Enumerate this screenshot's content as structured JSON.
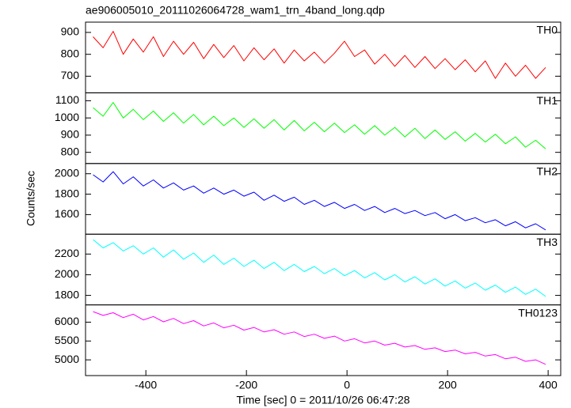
{
  "chart_data": [
    {
      "type": "line",
      "title": "ae906005010_20111026064728_wam1_trn_4band_long.qdp",
      "x": [
        -505,
        -485,
        -465,
        -445,
        -425,
        -405,
        -385,
        -365,
        -345,
        -325,
        -305,
        -285,
        -265,
        -245,
        -225,
        -205,
        -185,
        -165,
        -145,
        -125,
        -105,
        -85,
        -65,
        -45,
        -25,
        -5,
        15,
        35,
        55,
        75,
        95,
        115,
        135,
        155,
        175,
        195,
        215,
        235,
        255,
        275,
        295,
        315,
        335,
        355,
        375,
        395
      ],
      "series": [
        {
          "name": "TH0",
          "color": "#ff0000",
          "values": [
            880,
            830,
            905,
            800,
            870,
            810,
            880,
            790,
            860,
            800,
            855,
            780,
            845,
            785,
            840,
            770,
            830,
            775,
            825,
            760,
            820,
            770,
            810,
            760,
            805,
            860,
            790,
            820,
            755,
            800,
            745,
            795,
            740,
            790,
            735,
            780,
            730,
            775,
            720,
            770,
            690,
            760,
            700,
            750,
            690,
            740
          ]
        }
      ],
      "xlim": [
        -520,
        425
      ],
      "ylim": [
        624,
        947
      ],
      "yticks": [
        700,
        800,
        900
      ]
    },
    {
      "type": "line",
      "x": [
        -505,
        -485,
        -465,
        -445,
        -425,
        -405,
        -385,
        -365,
        -345,
        -325,
        -305,
        -285,
        -265,
        -245,
        -225,
        -205,
        -185,
        -165,
        -145,
        -125,
        -105,
        -85,
        -65,
        -45,
        -25,
        -5,
        15,
        35,
        55,
        75,
        95,
        115,
        135,
        155,
        175,
        195,
        215,
        235,
        255,
        275,
        295,
        315,
        335,
        355,
        375,
        395
      ],
      "series": [
        {
          "name": "TH1",
          "color": "#00ff00",
          "values": [
            1060,
            1010,
            1090,
            1000,
            1050,
            990,
            1040,
            980,
            1030,
            970,
            1020,
            960,
            1010,
            955,
            1000,
            945,
            995,
            940,
            990,
            930,
            985,
            925,
            975,
            920,
            970,
            915,
            960,
            905,
            955,
            900,
            945,
            890,
            940,
            880,
            930,
            875,
            920,
            865,
            910,
            860,
            905,
            850,
            890,
            830,
            870,
            820
          ]
        }
      ],
      "xlim": [
        -520,
        425
      ],
      "ylim": [
        735,
        1146
      ],
      "yticks": [
        800,
        900,
        1000,
        1100
      ]
    },
    {
      "type": "line",
      "ylabel": "Counts/sec",
      "x": [
        -505,
        -485,
        -465,
        -445,
        -425,
        -405,
        -385,
        -365,
        -345,
        -325,
        -305,
        -285,
        -265,
        -245,
        -225,
        -205,
        -185,
        -165,
        -145,
        -125,
        -105,
        -85,
        -65,
        -45,
        -25,
        -5,
        15,
        35,
        55,
        75,
        95,
        115,
        135,
        155,
        175,
        195,
        215,
        235,
        255,
        275,
        295,
        315,
        335,
        355,
        375,
        395
      ],
      "series": [
        {
          "name": "TH2",
          "color": "#0000ff",
          "values": [
            1990,
            1920,
            2020,
            1900,
            1970,
            1880,
            1940,
            1860,
            1910,
            1840,
            1880,
            1810,
            1860,
            1800,
            1840,
            1780,
            1820,
            1740,
            1790,
            1730,
            1770,
            1700,
            1740,
            1680,
            1720,
            1660,
            1700,
            1640,
            1680,
            1620,
            1660,
            1610,
            1640,
            1590,
            1620,
            1560,
            1600,
            1540,
            1570,
            1520,
            1550,
            1490,
            1530,
            1470,
            1510,
            1450
          ]
        }
      ],
      "xlim": [
        -520,
        425
      ],
      "ylim": [
        1408,
        2100
      ],
      "yticks": [
        1600,
        1800,
        2000
      ]
    },
    {
      "type": "line",
      "x": [
        -505,
        -485,
        -465,
        -445,
        -425,
        -405,
        -385,
        -365,
        -345,
        -325,
        -305,
        -285,
        -265,
        -245,
        -225,
        -205,
        -185,
        -165,
        -145,
        -125,
        -105,
        -85,
        -65,
        -45,
        -25,
        -5,
        15,
        35,
        55,
        75,
        95,
        115,
        135,
        155,
        175,
        195,
        215,
        235,
        255,
        275,
        295,
        315,
        335,
        355,
        375,
        395
      ],
      "series": [
        {
          "name": "TH3",
          "color": "#00ffff",
          "values": [
            2340,
            2260,
            2310,
            2230,
            2280,
            2200,
            2260,
            2170,
            2240,
            2150,
            2210,
            2120,
            2190,
            2100,
            2160,
            2080,
            2140,
            2060,
            2120,
            2040,
            2100,
            2030,
            2080,
            2010,
            2060,
            1990,
            2040,
            1970,
            2020,
            1950,
            2000,
            1930,
            1980,
            1910,
            1960,
            1890,
            1940,
            1870,
            1920,
            1850,
            1900,
            1830,
            1880,
            1810,
            1860,
            1790
          ]
        }
      ],
      "xlim": [
        -520,
        425
      ],
      "ylim": [
        1708,
        2392
      ],
      "yticks": [
        1800,
        2000,
        2200
      ]
    },
    {
      "type": "line",
      "xlabel": "Time [sec] 0 = 2011/10/26 06:47:28",
      "x": [
        -505,
        -485,
        -465,
        -445,
        -425,
        -405,
        -385,
        -365,
        -345,
        -325,
        -305,
        -285,
        -265,
        -245,
        -225,
        -205,
        -185,
        -165,
        -145,
        -125,
        -105,
        -85,
        -65,
        -45,
        -25,
        -5,
        15,
        35,
        55,
        75,
        95,
        115,
        135,
        155,
        175,
        195,
        215,
        235,
        255,
        275,
        295,
        315,
        335,
        355,
        375,
        395
      ],
      "series": [
        {
          "name": "TH0123",
          "color": "#ff00ff",
          "values": [
            6280,
            6180,
            6250,
            6120,
            6210,
            6060,
            6150,
            6010,
            6100,
            5960,
            6040,
            5900,
            5980,
            5850,
            5920,
            5790,
            5860,
            5740,
            5800,
            5680,
            5740,
            5620,
            5680,
            5570,
            5630,
            5500,
            5560,
            5450,
            5500,
            5390,
            5440,
            5340,
            5380,
            5280,
            5320,
            5220,
            5260,
            5160,
            5200,
            5100,
            5140,
            5030,
            5070,
            4960,
            5000,
            4880
          ]
        }
      ],
      "xlim": [
        -520,
        425
      ],
      "ylim": [
        4583,
        6458
      ],
      "yticks": [
        5000,
        5500,
        6000
      ],
      "xticks": [
        -400,
        -200,
        0,
        200,
        400
      ]
    }
  ]
}
